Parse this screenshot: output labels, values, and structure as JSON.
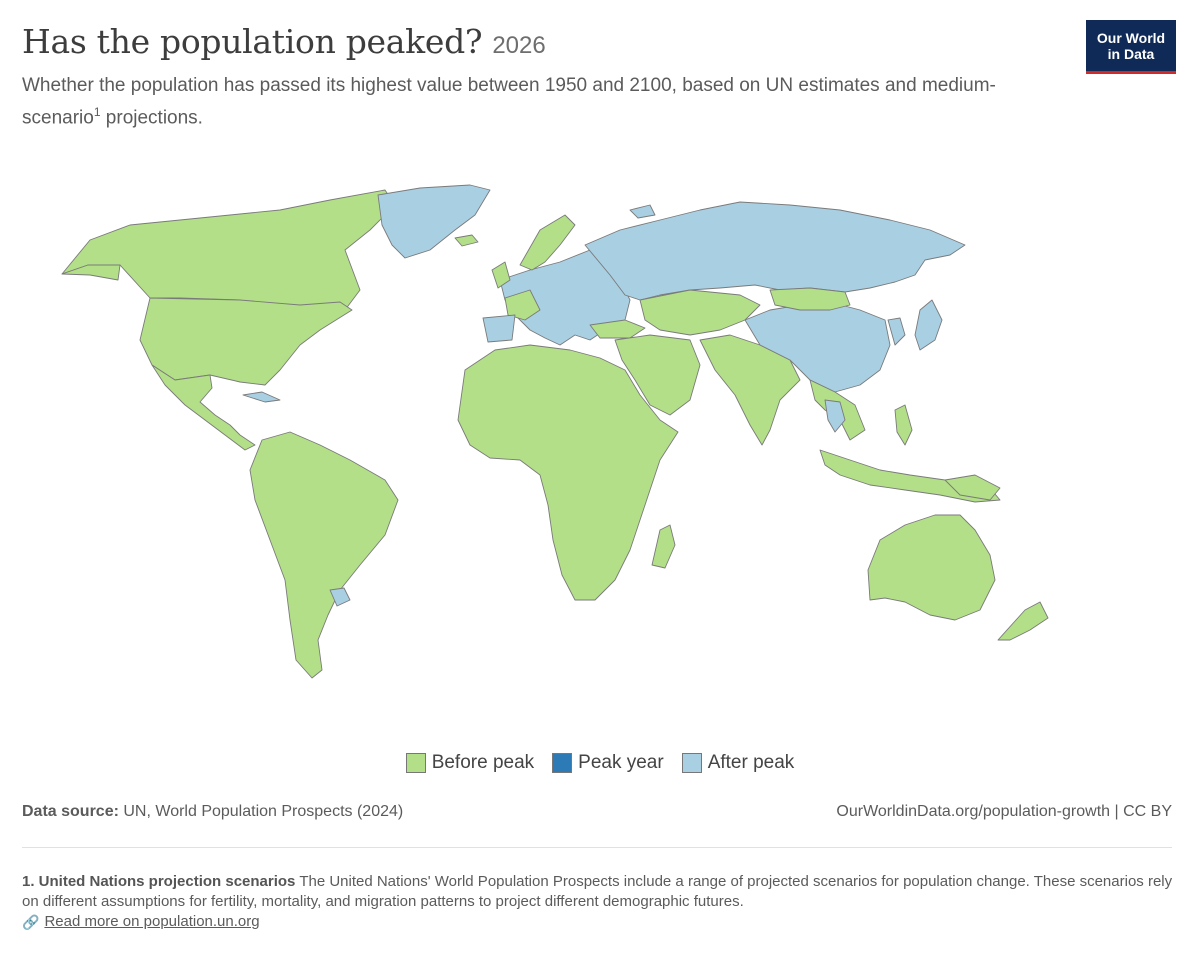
{
  "header": {
    "title": "Has the population peaked?",
    "year": "2026",
    "subtitle_main": "Whether the population has passed its highest value between 1950 and 2100, based on UN estimates and medium-scenario",
    "subtitle_sup": "1",
    "subtitle_end": " projections."
  },
  "logo": {
    "line1": "Our World",
    "line2": "in Data",
    "bg": "#0f2a57",
    "accent": "#cf2b2b"
  },
  "legend": [
    {
      "label": "Before peak",
      "color": "#b3df88"
    },
    {
      "label": "Peak year",
      "color": "#2c7bb6"
    },
    {
      "label": "After peak",
      "color": "#a9cfe3"
    }
  ],
  "map": {
    "after_peak_regions": [
      "Greenland",
      "Russia",
      "China",
      "Japan",
      "South Korea",
      "Europe (most)",
      "Cuba",
      "Thailand",
      "Uruguay",
      "Svalbard"
    ],
    "before_peak_regions": [
      "North America",
      "South America",
      "Africa",
      "Middle East",
      "India",
      "Central Asia",
      "Southeast Asia",
      "Australia",
      "New Zealand",
      "Iceland"
    ]
  },
  "source": {
    "label": "Data source:",
    "text": "UN, World Population Prospects (2024)"
  },
  "url": {
    "text": "OurWorldinData.org/population-growth",
    "license": "CC BY"
  },
  "footnote": {
    "heading": "1. United Nations projection scenarios",
    "text": "The United Nations' World Population Prospects include a range of projected scenarios for population change. These scenarios rely on different assumptions for fertility, mortality, and migration patterns to project different demographic futures.",
    "link_icon": "link-icon",
    "link_text": "Read more on population.un.org"
  }
}
